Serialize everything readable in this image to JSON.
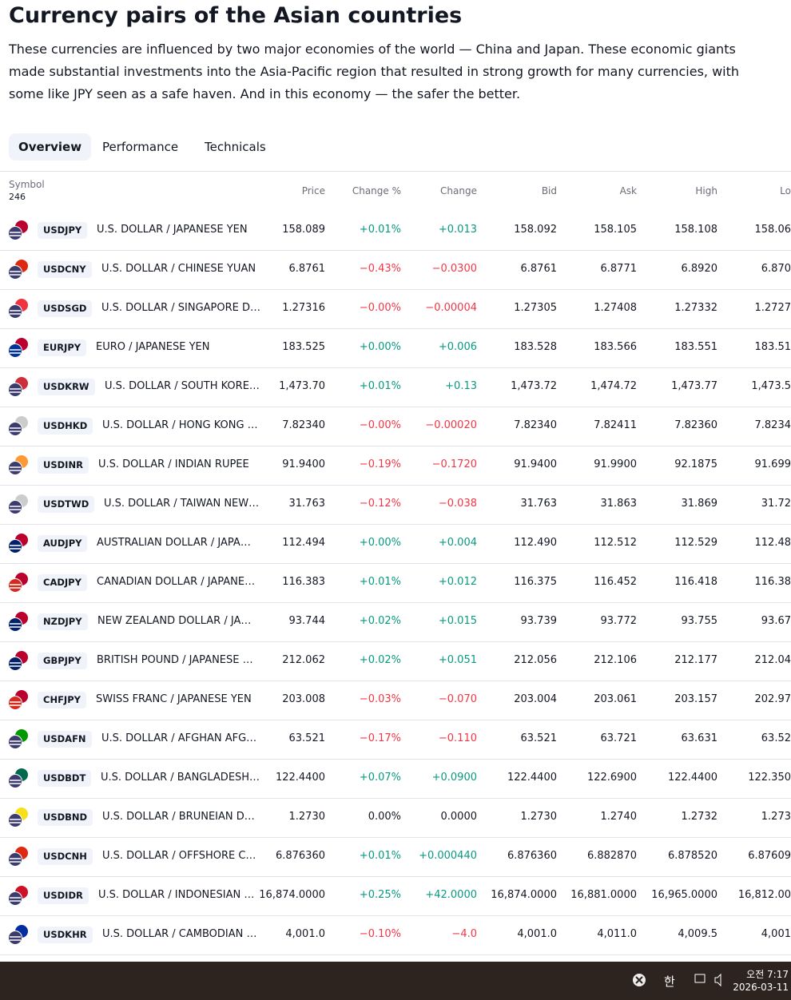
{
  "header": {
    "title": "Currency pairs of the Asian countries",
    "description": "These currencies are influenced by two major economies of the world — China and Japan. These economic giants made substantial investments into the Asia-Pacific region that resulted in strong growth for many currencies, with some like JPY seen as a safe haven. And in this economy — the safer the better."
  },
  "tabs": [
    "Overview",
    "Performance",
    "Technicals"
  ],
  "table": {
    "columns": [
      "Symbol",
      "Price",
      "Change %",
      "Change",
      "Bid",
      "Ask",
      "High",
      "Lo"
    ],
    "symbol_count": 246,
    "rows": [
      [
        "USDJPY",
        "U.S. DOLLAR / JAPANESE YEN",
        "158.089",
        "+0.01%",
        "+0.013",
        "158.092",
        "158.105",
        "158.108",
        "158.06"
      ],
      [
        "USDCNY",
        "U.S. DOLLAR / CHINESE YUAN",
        "6.8761",
        "−0.43%",
        "−0.0300",
        "6.8761",
        "6.8771",
        "6.8920",
        "6.870"
      ],
      [
        "USDSGD",
        "U.S. DOLLAR / SINGAPORE D…",
        "1.27316",
        "−0.00%",
        "−0.00004",
        "1.27305",
        "1.27408",
        "1.27332",
        "1.2727"
      ],
      [
        "EURJPY",
        "EURO / JAPANESE YEN",
        "183.525",
        "+0.00%",
        "+0.006",
        "183.528",
        "183.566",
        "183.551",
        "183.51"
      ],
      [
        "USDKRW",
        "U.S. DOLLAR / SOUTH KORE…",
        "1,473.70",
        "+0.01%",
        "+0.13",
        "1,473.72",
        "1,474.72",
        "1,473.77",
        "1,473.5"
      ],
      [
        "USDHKD",
        "U.S. DOLLAR / HONG KONG …",
        "7.82340",
        "−0.00%",
        "−0.00020",
        "7.82340",
        "7.82411",
        "7.82360",
        "7.8234"
      ],
      [
        "USDINR",
        "U.S. DOLLAR / INDIAN RUPEE",
        "91.9400",
        "−0.19%",
        "−0.1720",
        "91.9400",
        "91.9900",
        "92.1875",
        "91.699"
      ],
      [
        "USDTWD",
        "U.S. DOLLAR / TAIWAN NEW…",
        "31.763",
        "−0.12%",
        "−0.038",
        "31.763",
        "31.863",
        "31.869",
        "31.72"
      ],
      [
        "AUDJPY",
        "AUSTRALIAN DOLLAR / JAPA…",
        "112.494",
        "+0.00%",
        "+0.004",
        "112.490",
        "112.512",
        "112.529",
        "112.48"
      ],
      [
        "CADJPY",
        "CANADIAN DOLLAR / JAPANE…",
        "116.383",
        "+0.01%",
        "+0.012",
        "116.375",
        "116.452",
        "116.418",
        "116.38"
      ],
      [
        "NZDJPY",
        "NEW ZEALAND DOLLAR / JA…",
        "93.744",
        "+0.02%",
        "+0.015",
        "93.739",
        "93.772",
        "93.755",
        "93.67"
      ],
      [
        "GBPJPY",
        "BRITISH POUND / JAPANESE …",
        "212.062",
        "+0.02%",
        "+0.051",
        "212.056",
        "212.106",
        "212.177",
        "212.04"
      ],
      [
        "CHFJPY",
        "SWISS FRANC / JAPANESE YEN",
        "203.008",
        "−0.03%",
        "−0.070",
        "203.004",
        "203.061",
        "203.157",
        "202.97"
      ],
      [
        "USDAFN",
        "U.S. DOLLAR / AFGHAN AFG…",
        "63.521",
        "−0.17%",
        "−0.110",
        "63.521",
        "63.721",
        "63.631",
        "63.52"
      ],
      [
        "USDBDT",
        "U.S. DOLLAR / BANGLADESH…",
        "122.4400",
        "+0.07%",
        "+0.0900",
        "122.4400",
        "122.6900",
        "122.4400",
        "122.350"
      ],
      [
        "USDBND",
        "U.S. DOLLAR / BRUNEIAN D…",
        "1.2730",
        "0.00%",
        "0.0000",
        "1.2730",
        "1.2740",
        "1.2732",
        "1.273"
      ],
      [
        "USDCNH",
        "U.S. DOLLAR / OFFSHORE C…",
        "6.876360",
        "+0.01%",
        "+0.000440",
        "6.876360",
        "6.882870",
        "6.878520",
        "6.87609"
      ],
      [
        "USDIDR",
        "U.S. DOLLAR / INDONESIAN …",
        "16,874.0000",
        "+0.25%",
        "+42.0000",
        "16,874.0000",
        "16,881.0000",
        "16,965.0000",
        "16,812.00"
      ],
      [
        "USDKHR",
        "U.S. DOLLAR / CAMBODIAN …",
        "4,001.0",
        "−0.10%",
        "−4.0",
        "4,001.0",
        "4,011.0",
        "4,009.5",
        "4,001"
      ]
    ]
  },
  "taskbar": {
    "ime": "한",
    "time": "오전 7:17",
    "date": "2026-03-11"
  }
}
